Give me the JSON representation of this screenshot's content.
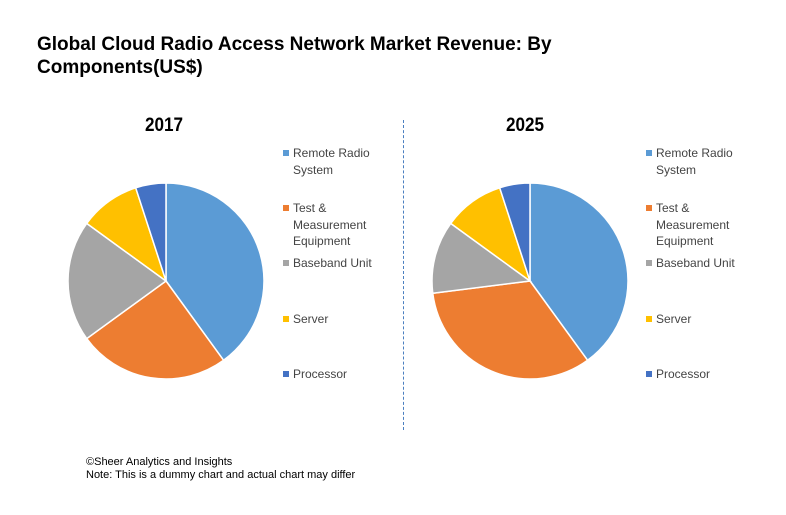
{
  "title": "Global Cloud Radio Access Network  Market Revenue: By Components(US$)",
  "colors": {
    "Remote Radio System": "#5b9bd5",
    "Test & Measurement Equipment": "#ed7d31",
    "Baseband Unit": "#a5a5a5",
    "Server": "#ffc000",
    "Processor": "#4472c4"
  },
  "chart_data": [
    {
      "type": "pie",
      "title": "2017",
      "labels": [
        "Remote Radio System",
        "Test & Measurement Equipment",
        "Baseband Unit",
        "Server",
        "Processor"
      ],
      "values": [
        40,
        25,
        20,
        10,
        5
      ],
      "legend": "right"
    },
    {
      "type": "pie",
      "title": "2025",
      "labels": [
        "Remote Radio System",
        "Test & Measurement Equipment",
        "Baseband Unit",
        "Server",
        "Processor"
      ],
      "values": [
        40,
        33,
        12,
        10,
        5
      ],
      "legend": "right"
    }
  ],
  "footer": {
    "copyright": "©Sheer Analytics and Insights",
    "note": "Note: This is a dummy chart and actual chart may differ"
  }
}
